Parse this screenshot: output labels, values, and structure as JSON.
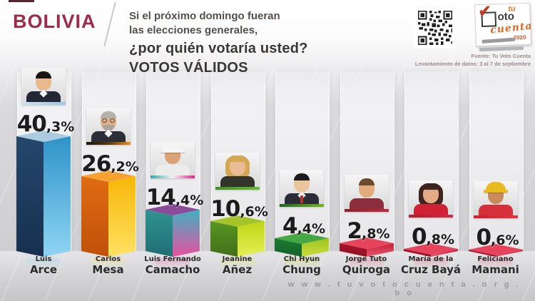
{
  "header": {
    "country": "BOLIVIA",
    "question_line1": "Si el próximo domingo fueran",
    "question_line2": "las elecciones generales,",
    "question_line3": "¿por quién votaría usted?",
    "question_line4": "VOTOS VÁLIDOS",
    "source_line1": "Fuente: Tu Voto Cuenta",
    "source_line2": "Levantamiento de datos: 3 al 7 de septiembre",
    "logo": {
      "tu": "tu",
      "oto": "oto",
      "cuenta": "cuenta",
      "year": "2020"
    }
  },
  "footer": {
    "url": "w w w . t u v o t o c u e n t a . o r g . b o"
  },
  "colors": {
    "accent_maroon": "#9e2a4a",
    "question_text": "#3b3735",
    "percent_text": "#1c1c1c",
    "url_gray": "#9a9a9c"
  },
  "chart_data": {
    "type": "bar",
    "title": "¿por quién votaría usted? — VOTOS VÁLIDOS",
    "subtitle": "Si el próximo domingo fueran las elecciones generales",
    "unit": "%",
    "ylim": [
      0,
      45
    ],
    "grid": false,
    "legend": "none",
    "categories": [
      "Luis Arce",
      "Carlos Mesa",
      "Luis Fernando Camacho",
      "Jeanine Añez",
      "Chi Hyun Chung",
      "Jorge Tuto Quiroga",
      "María de la Cruz Bayá",
      "Feliciano Mamani"
    ],
    "values": [
      40.3,
      26.2,
      14.4,
      10.6,
      4.4,
      2.8,
      0.8,
      0.6
    ],
    "candidates": [
      {
        "first": "Luis",
        "last": "Arce",
        "value": 40.3,
        "label": "40,3%",
        "bar": {
          "top": "#aacbe0",
          "left": [
            "#25476b",
            "#173050"
          ],
          "right": [
            "#2f93c8",
            "#8fd4f4"
          ]
        },
        "strip": [
          "#cfe4f2",
          "#9cc6e2"
        ],
        "avatar": {
          "skin": "#e9b98e",
          "hair": "#181412",
          "shirt": "#232733",
          "style": "short",
          "collar": true
        }
      },
      {
        "first": "Carlos",
        "last": "Mesa",
        "value": 26.2,
        "label": "26,2%",
        "bar": {
          "top": "#f6a233",
          "left": [
            "#e06c12",
            "#c1500a"
          ],
          "right": [
            "#f8b607",
            "#ffe163"
          ]
        },
        "strip": [
          "#141414",
          "#5a3808",
          "#f09210"
        ],
        "avatar": {
          "skin": "#e3b08a",
          "hair": "#b5b0a8",
          "shirt": "#2b2e36",
          "style": "short",
          "collar": true,
          "glasses": true,
          "beard": "#a9a49c"
        }
      },
      {
        "first": "Luis Fernando",
        "last": "Camacho",
        "value": 14.4,
        "label": "14,4%",
        "bar": {
          "top": "#8b4a9a",
          "left": [
            "#2f9490",
            "#1f6e74"
          ],
          "right": [
            "#3fb2c2",
            "#e84f9f"
          ]
        },
        "strip": [
          "#2fa8a8",
          "#f4f4f4",
          "#e0218a"
        ],
        "avatar": {
          "skin": "#dba177",
          "hair": "#7a5a3a",
          "shirt": "#ececea",
          "style": "cap",
          "hat": "#f4f4f2"
        }
      },
      {
        "first": "Jeanine",
        "last": "Añez",
        "value": 10.6,
        "label": "10,6%",
        "bar": {
          "top": "#a4c427",
          "left": [
            "#579622",
            "#426f18"
          ],
          "right": [
            "#bfd515",
            "#e6ef55"
          ]
        },
        "strip": [
          "#3f8f24",
          "#6ab832"
        ],
        "avatar": {
          "skin": "#eabc96",
          "hair": "#d3a753",
          "shirt": "#33352b",
          "style": "long"
        }
      },
      {
        "first": "Chi Hyun",
        "last": "Chung",
        "value": 4.4,
        "label": "4,4%",
        "bar": {
          "top": "#45a844",
          "left": [
            "#1b7c33",
            "#14602a"
          ],
          "right": [
            "#9fc41c",
            "#c8dc3c"
          ]
        },
        "strip": [
          "#1c6428",
          "#74b31e"
        ],
        "avatar": {
          "skin": "#eac49c",
          "hair": "#1d1d1f",
          "shirt": "#2a2d35",
          "style": "short",
          "collar": true,
          "tie": "#c22f2f"
        }
      },
      {
        "first": "Jorge Tuto",
        "last": "Quiroga",
        "value": 2.8,
        "label": "2,8%",
        "bar": {
          "top": "#e8435c",
          "left": [
            "#a8152b",
            "#8f1024"
          ],
          "right": [
            "#c91f3a",
            "#e45a6e"
          ]
        },
        "strip": [
          "#8e2430",
          "#c22740"
        ],
        "avatar": {
          "skin": "#e2ab80",
          "hair": "#6b4a2e",
          "shirt": "#8c2f3d",
          "style": "short"
        }
      },
      {
        "first": "María de la",
        "last": "Cruz Bayá",
        "value": 0.8,
        "label": "0,8%",
        "bar": {
          "top": "#e8435c",
          "left": [
            "#a8152b",
            "#8f1024"
          ],
          "right": [
            "#c91f3a",
            "#e45a6e"
          ]
        },
        "strip": [
          "#b01d30",
          "#d82742"
        ],
        "avatar": {
          "skin": "#e2ab85",
          "hair": "#3f241d",
          "shirt": "#cf2335",
          "style": "long"
        }
      },
      {
        "first": "Feliciano",
        "last": "Mamani",
        "value": 0.6,
        "label": "0,6%",
        "bar": {
          "top": "#e8435c",
          "left": [
            "#a8152b",
            "#8f1024"
          ],
          "right": [
            "#c91f3a",
            "#e45a6e"
          ]
        },
        "strip": [
          "#c42233",
          "#e03545"
        ],
        "avatar": {
          "skin": "#c98b5e",
          "hair": "#2a1a10",
          "shirt": "#d6303a",
          "style": "helmet",
          "hat": "#e9ba1f"
        }
      }
    ]
  }
}
